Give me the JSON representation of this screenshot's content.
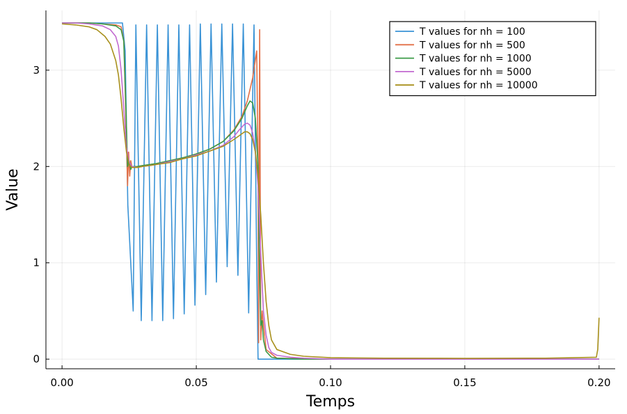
{
  "chart_data": {
    "type": "line",
    "title": "",
    "xlabel": "Temps",
    "ylabel": "Value",
    "xlim": [
      -0.006,
      0.206
    ],
    "ylim": [
      -0.1,
      3.62
    ],
    "xticks": [
      0.0,
      0.05,
      0.1,
      0.15,
      0.2
    ],
    "xtick_labels": [
      "0.00",
      "0.05",
      "0.10",
      "0.15",
      "0.20"
    ],
    "yticks": [
      0,
      1,
      2,
      3
    ],
    "ytick_labels": [
      "0",
      "1",
      "2",
      "3"
    ],
    "grid": true,
    "legend_position": "top-right",
    "series": [
      {
        "name": "T values for nh = 100",
        "color": "#3a93d6",
        "x": [
          0.0,
          0.004,
          0.008,
          0.012,
          0.016,
          0.02,
          0.0225,
          0.0235,
          0.0245,
          0.0265,
          0.0275,
          0.0295,
          0.0315,
          0.0335,
          0.0355,
          0.0375,
          0.0395,
          0.0415,
          0.0435,
          0.0455,
          0.0475,
          0.0495,
          0.0515,
          0.0535,
          0.0555,
          0.0575,
          0.0595,
          0.0615,
          0.0635,
          0.0655,
          0.0675,
          0.0695,
          0.0715,
          0.0725,
          0.073,
          0.0745,
          0.08,
          0.1,
          0.15,
          0.199,
          0.2
        ],
        "y": [
          3.49,
          3.49,
          3.49,
          3.49,
          3.49,
          3.49,
          3.49,
          3.2,
          1.6,
          0.5,
          3.47,
          0.4,
          3.47,
          0.4,
          3.47,
          0.4,
          3.47,
          0.42,
          3.47,
          0.47,
          3.47,
          0.56,
          3.48,
          0.67,
          3.48,
          0.8,
          3.48,
          0.96,
          3.48,
          0.87,
          3.48,
          0.48,
          3.47,
          1.0,
          0.0,
          0.0,
          0.0,
          0.0,
          0.0,
          0.0,
          0.0
        ]
      },
      {
        "name": "T values for nh = 500",
        "color": "#e26f46",
        "x": [
          0.0,
          0.005,
          0.01,
          0.015,
          0.02,
          0.022,
          0.023,
          0.0238,
          0.0244,
          0.0248,
          0.0252,
          0.0256,
          0.026,
          0.028,
          0.03,
          0.035,
          0.04,
          0.045,
          0.05,
          0.055,
          0.06,
          0.064,
          0.067,
          0.069,
          0.071,
          0.0725,
          0.073,
          0.0732,
          0.0736,
          0.074,
          0.0745,
          0.076,
          0.08,
          0.1,
          0.15,
          0.199,
          0.2
        ],
        "y": [
          3.49,
          3.49,
          3.49,
          3.48,
          3.47,
          3.45,
          3.3,
          2.5,
          1.8,
          2.15,
          1.9,
          2.06,
          2.0,
          2.0,
          2.01,
          2.03,
          2.06,
          2.09,
          2.13,
          2.18,
          2.26,
          2.38,
          2.52,
          2.68,
          2.92,
          3.2,
          2.0,
          0.17,
          3.42,
          0.2,
          0.5,
          0.1,
          0.01,
          0.0,
          0.0,
          0.0,
          0.0
        ]
      },
      {
        "name": "T values for nh = 1000",
        "color": "#3b9b47",
        "x": [
          0.0,
          0.005,
          0.01,
          0.015,
          0.02,
          0.022,
          0.023,
          0.0238,
          0.0244,
          0.025,
          0.0256,
          0.026,
          0.028,
          0.03,
          0.035,
          0.04,
          0.045,
          0.05,
          0.055,
          0.06,
          0.064,
          0.067,
          0.069,
          0.07,
          0.071,
          0.072,
          0.073,
          0.0735,
          0.074,
          0.0745,
          0.075,
          0.076,
          0.078,
          0.08,
          0.09,
          0.1,
          0.15,
          0.199,
          0.2
        ],
        "y": [
          3.49,
          3.49,
          3.49,
          3.48,
          3.46,
          3.42,
          3.3,
          2.6,
          2.0,
          2.06,
          1.97,
          2.0,
          2.0,
          2.01,
          2.03,
          2.06,
          2.09,
          2.13,
          2.18,
          2.26,
          2.37,
          2.5,
          2.63,
          2.68,
          2.66,
          2.5,
          2.0,
          1.0,
          0.35,
          0.4,
          0.2,
          0.08,
          0.02,
          0.01,
          0.0,
          0.0,
          0.0,
          0.0,
          0.0
        ]
      },
      {
        "name": "T values for nh = 5000",
        "color": "#c26ad0",
        "x": [
          0.0,
          0.005,
          0.01,
          0.015,
          0.018,
          0.02,
          0.021,
          0.022,
          0.023,
          0.024,
          0.025,
          0.026,
          0.028,
          0.03,
          0.035,
          0.04,
          0.045,
          0.05,
          0.055,
          0.06,
          0.064,
          0.066,
          0.068,
          0.069,
          0.07,
          0.071,
          0.072,
          0.073,
          0.074,
          0.075,
          0.076,
          0.077,
          0.078,
          0.08,
          0.085,
          0.09,
          0.1,
          0.12,
          0.15,
          0.199,
          0.2
        ],
        "y": [
          3.49,
          3.49,
          3.48,
          3.46,
          3.42,
          3.35,
          3.25,
          3.0,
          2.6,
          2.2,
          2.05,
          2.0,
          1.99,
          2.0,
          2.02,
          2.05,
          2.08,
          2.12,
          2.16,
          2.22,
          2.31,
          2.38,
          2.44,
          2.45,
          2.43,
          2.35,
          2.15,
          1.8,
          1.1,
          0.5,
          0.25,
          0.12,
          0.07,
          0.04,
          0.02,
          0.01,
          0.0,
          0.0,
          0.0,
          0.0,
          0.0
        ]
      },
      {
        "name": "T values for nh = 10000",
        "color": "#a8901c",
        "x": [
          0.0,
          0.005,
          0.01,
          0.013,
          0.016,
          0.018,
          0.02,
          0.021,
          0.022,
          0.023,
          0.024,
          0.025,
          0.026,
          0.028,
          0.03,
          0.035,
          0.04,
          0.045,
          0.05,
          0.055,
          0.06,
          0.064,
          0.066,
          0.068,
          0.069,
          0.07,
          0.071,
          0.072,
          0.073,
          0.074,
          0.075,
          0.076,
          0.077,
          0.078,
          0.08,
          0.085,
          0.09,
          0.1,
          0.12,
          0.15,
          0.18,
          0.199,
          0.1995,
          0.2
        ],
        "y": [
          3.48,
          3.47,
          3.45,
          3.42,
          3.35,
          3.27,
          3.1,
          2.95,
          2.7,
          2.4,
          2.15,
          2.02,
          1.99,
          1.99,
          2.0,
          2.02,
          2.04,
          2.08,
          2.11,
          2.16,
          2.21,
          2.28,
          2.32,
          2.36,
          2.36,
          2.34,
          2.28,
          2.15,
          1.9,
          1.5,
          1.0,
          0.6,
          0.35,
          0.2,
          0.1,
          0.05,
          0.03,
          0.015,
          0.01,
          0.008,
          0.01,
          0.02,
          0.1,
          0.43
        ]
      }
    ]
  }
}
